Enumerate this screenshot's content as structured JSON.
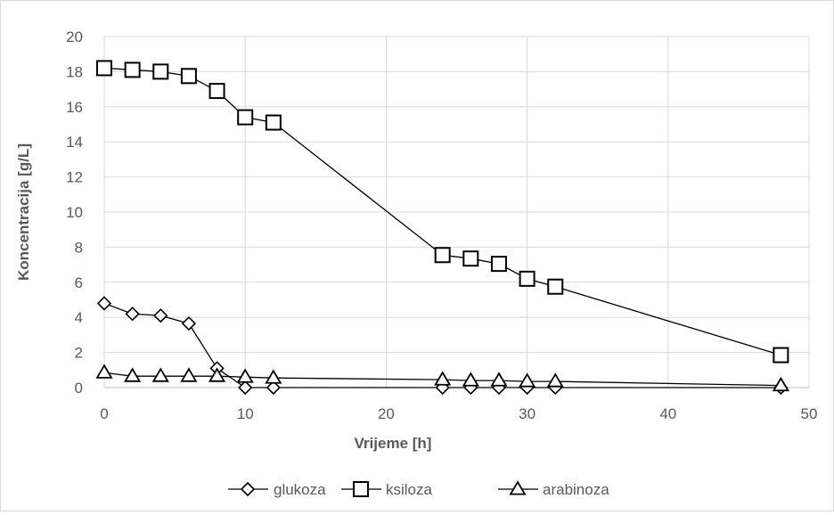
{
  "chart_data": {
    "type": "line",
    "title": "",
    "xlabel": "Vrijeme [h]",
    "ylabel": "Koncentracija [g/L]",
    "xlim": [
      0,
      50
    ],
    "ylim": [
      0,
      20
    ],
    "x_ticks": [
      "0",
      "10",
      "20",
      "30",
      "40",
      "50"
    ],
    "y_ticks": [
      "0",
      "2",
      "4",
      "6",
      "8",
      "10",
      "12",
      "14",
      "16",
      "18",
      "20"
    ],
    "grid": true,
    "legend_position": "bottom",
    "series": [
      {
        "name": "glukoza",
        "marker": "diamond",
        "color": "#000000",
        "x": [
          0,
          2,
          4,
          6,
          8,
          10,
          12,
          24,
          26,
          28,
          30,
          32,
          48
        ],
        "values": [
          4.8,
          4.2,
          4.1,
          3.65,
          1.1,
          0.0,
          0.0,
          0.0,
          0.0,
          0.0,
          0.0,
          0.0,
          0.0
        ]
      },
      {
        "name": "ksiloza",
        "marker": "square",
        "color": "#000000",
        "x": [
          0,
          2,
          4,
          6,
          8,
          10,
          12,
          24,
          26,
          28,
          30,
          32,
          48
        ],
        "values": [
          18.2,
          18.1,
          18.0,
          17.75,
          16.9,
          15.4,
          15.1,
          7.55,
          7.35,
          7.05,
          6.2,
          5.75,
          1.85
        ]
      },
      {
        "name": "arabinoza",
        "marker": "triangle",
        "color": "#000000",
        "x": [
          0,
          2,
          4,
          6,
          8,
          10,
          12,
          24,
          26,
          28,
          30,
          32,
          48
        ],
        "values": [
          0.85,
          0.65,
          0.65,
          0.65,
          0.65,
          0.6,
          0.55,
          0.45,
          0.4,
          0.4,
          0.35,
          0.35,
          0.12
        ]
      }
    ]
  }
}
